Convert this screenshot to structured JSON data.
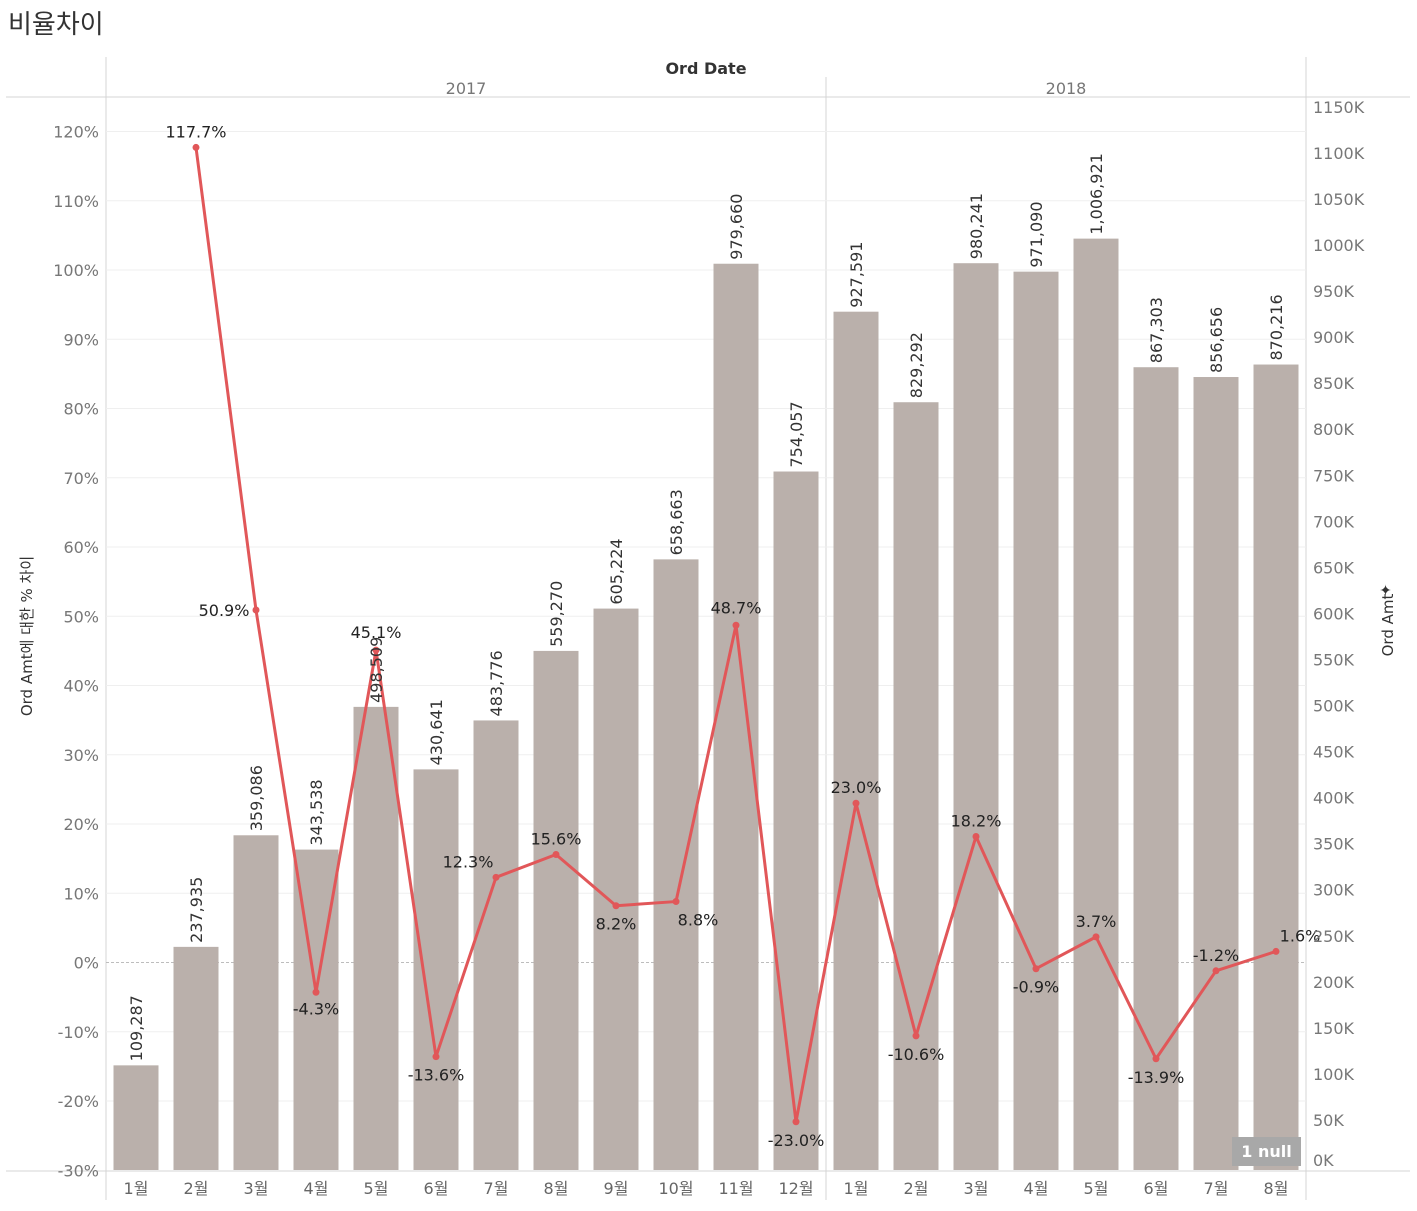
{
  "title": "비율차이",
  "header": {
    "field": "Ord Date",
    "years": [
      "2017",
      "2018"
    ]
  },
  "null_badge": "1 null",
  "colors": {
    "bar": "#bab0ab",
    "line": "#e15759",
    "grid": "#efefef",
    "zero": "#bdbdbd"
  },
  "chart_data": {
    "type": "bar",
    "categories": [
      "1월",
      "2월",
      "3월",
      "4월",
      "5월",
      "6월",
      "7월",
      "8월",
      "9월",
      "10월",
      "11월",
      "12월",
      "1월",
      "2월",
      "3월",
      "4월",
      "5월",
      "6월",
      "7월",
      "8월"
    ],
    "groups": [
      {
        "name": "2017",
        "count": 12
      },
      {
        "name": "2018",
        "count": 8
      }
    ],
    "series": [
      {
        "name": "Ord Amt",
        "type": "bar",
        "axis": "right",
        "values": [
          109287,
          237935,
          359086,
          343538,
          498509,
          430641,
          483776,
          559270,
          605224,
          658663,
          979660,
          754057,
          927591,
          829292,
          980241,
          971090,
          1006921,
          867303,
          856656,
          870216
        ],
        "labels": [
          "109,287",
          "237,935",
          "359,086",
          "343,538",
          "498,509",
          "430,641",
          "483,776",
          "559,270",
          "605,224",
          "658,663",
          "979,660",
          "754,057",
          "927,591",
          "829,292",
          "980,241",
          "971,090",
          "1,006,921",
          "867,303",
          "856,656",
          "870,216"
        ]
      },
      {
        "name": "Ord Amt에 대한 % 차이",
        "type": "line",
        "axis": "left",
        "values": [
          null,
          117.7,
          50.9,
          -4.3,
          45.1,
          -13.6,
          12.3,
          15.6,
          8.2,
          8.8,
          48.7,
          -23.0,
          23.0,
          -10.6,
          18.2,
          -0.9,
          3.7,
          -13.9,
          -1.2,
          1.6
        ],
        "labels": [
          "",
          "117.7%",
          "50.9%",
          "-4.3%",
          "45.1%",
          "-13.6%",
          "12.3%",
          "15.6%",
          "8.2%",
          "8.8%",
          "48.7%",
          "-23.0%",
          "23.0%",
          "-10.6%",
          "18.2%",
          "-0.9%",
          "3.7%",
          "-13.9%",
          "-1.2%",
          "1.6%"
        ]
      }
    ],
    "y_left": {
      "label": "Ord Amt에 대한 % 차이",
      "range": [
        -30,
        120
      ],
      "ticks": [
        "120%",
        "110%",
        "100%",
        "90%",
        "80%",
        "70%",
        "60%",
        "50%",
        "40%",
        "30%",
        "20%",
        "10%",
        "0%",
        "-10%",
        "-20%",
        "-30%"
      ],
      "tick_values": [
        120,
        110,
        100,
        90,
        80,
        70,
        60,
        50,
        40,
        30,
        20,
        10,
        0,
        -10,
        -20,
        -30
      ]
    },
    "y_right": {
      "label": "Ord Amt",
      "range": [
        0,
        1150000
      ],
      "ticks": [
        "1150K",
        "1100K",
        "1050K",
        "1000K",
        "950K",
        "900K",
        "850K",
        "800K",
        "750K",
        "700K",
        "650K",
        "600K",
        "550K",
        "500K",
        "450K",
        "400K",
        "350K",
        "300K",
        "250K",
        "200K",
        "150K",
        "100K",
        "50K",
        "0K"
      ],
      "tick_values": [
        1150000,
        1100000,
        1050000,
        1000000,
        950000,
        900000,
        850000,
        800000,
        750000,
        700000,
        650000,
        600000,
        550000,
        500000,
        450000,
        400000,
        350000,
        300000,
        250000,
        200000,
        150000,
        100000,
        50000,
        0
      ]
    },
    "grid": true,
    "legend": "none"
  }
}
